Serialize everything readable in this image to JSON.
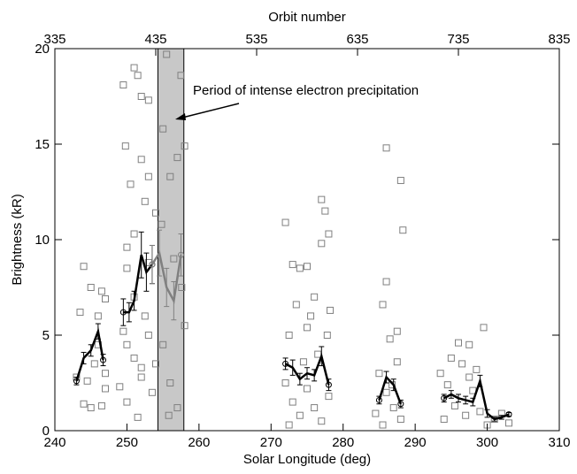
{
  "chart_data": {
    "type": "scatter",
    "x_label": "Solar Longitude (deg)",
    "y_label": "Brightness (kR)",
    "x2_label": "Orbit number",
    "annotation": "Period of intense electron precipitation",
    "xlim": [
      240,
      310
    ],
    "xticks": [
      240,
      250,
      260,
      270,
      280,
      290,
      300,
      310
    ],
    "ylim": [
      0,
      20
    ],
    "yticks": [
      0,
      5,
      10,
      15,
      20
    ],
    "x2lim": [
      335,
      835
    ],
    "x2ticks": [
      335,
      435,
      535,
      635,
      735,
      835
    ],
    "band": {
      "xlim": [
        254.3,
        257.9
      ],
      "color": "#c8c8c8"
    },
    "scatter": {
      "color": "#808080",
      "x": [
        244,
        245,
        246.5,
        247,
        243.5,
        245.5,
        244.5,
        246,
        247,
        244,
        246.5,
        245,
        243,
        246,
        247,
        249.5,
        251,
        251.5,
        252,
        253,
        249.8,
        250.5,
        252,
        253,
        251,
        250,
        252.5,
        254,
        255,
        256,
        257,
        258,
        257.5,
        255.5,
        250,
        251,
        252.5,
        253,
        250,
        251,
        252,
        253.5,
        250,
        251.5,
        254,
        255,
        256,
        257,
        258,
        249,
        253,
        254.8,
        256.5,
        249.5,
        252,
        255.8,
        257.6,
        272,
        273,
        274,
        275,
        277,
        277.5,
        278,
        277,
        276,
        273.5,
        272.5,
        275,
        278.2,
        272,
        273,
        274,
        275,
        276,
        277,
        278,
        272.5,
        274.5,
        276.5,
        275.5,
        277.8,
        286,
        288,
        288.3,
        286,
        285.5,
        287.5,
        286.5,
        285,
        286,
        287,
        288,
        284.5,
        285.5,
        287.5,
        286.8,
        296,
        297.5,
        299.5,
        295,
        296.5,
        298.5,
        294.5,
        295.5,
        297,
        298,
        299,
        300,
        301,
        302,
        303,
        294,
        297.5,
        293.5
      ],
      "y": [
        8.6,
        7.5,
        7.3,
        6.9,
        6.2,
        3.5,
        2.6,
        4.5,
        2.2,
        1.4,
        1.3,
        1.2,
        2.8,
        6.0,
        3.0,
        18.1,
        19.0,
        18.6,
        17.5,
        17.3,
        14.9,
        12.9,
        14.2,
        13.3,
        10.3,
        9.6,
        12.0,
        11.4,
        15.8,
        13.3,
        14.3,
        14.9,
        18.6,
        19.7,
        8.5,
        7.0,
        6.0,
        5.0,
        4.5,
        3.8,
        2.8,
        2.0,
        1.5,
        0.7,
        3.5,
        4.5,
        2.5,
        1.2,
        5.5,
        2.3,
        8.8,
        10.8,
        9.0,
        5.2,
        3.3,
        0.8,
        7.5,
        10.9,
        8.7,
        8.5,
        8.6,
        12.1,
        11.5,
        10.3,
        9.8,
        7.0,
        6.6,
        5.0,
        5.4,
        6.3,
        2.5,
        1.5,
        0.8,
        2.2,
        1.2,
        0.5,
        1.8,
        0.3,
        3.6,
        4.0,
        6.0,
        5.0,
        14.8,
        13.1,
        10.5,
        7.8,
        6.6,
        5.2,
        4.8,
        3.0,
        2.0,
        1.2,
        0.6,
        0.9,
        0.3,
        3.6,
        2.4,
        4.6,
        4.5,
        5.4,
        3.8,
        3.5,
        3.2,
        2.4,
        1.3,
        0.8,
        2.1,
        1.0,
        0.3,
        0.6,
        0.9,
        0.4,
        0.6,
        2.8,
        3.0
      ]
    },
    "series": [
      {
        "color": "#000000",
        "x": [
          243,
          244,
          245,
          246,
          246.7
        ],
        "values": [
          2.6,
          3.8,
          4.2,
          5.2,
          3.7
        ],
        "errors": [
          0.2,
          0.3,
          0.3,
          0.4,
          0.3
        ]
      },
      {
        "color": "#000000",
        "x": [
          249.5,
          250.3,
          251,
          252,
          252.7,
          253.5
        ],
        "values": [
          6.2,
          6.2,
          6.8,
          9.2,
          8.3,
          8.7
        ],
        "errors": [
          0.7,
          0.5,
          0.5,
          1.2,
          1.0,
          1.0
        ]
      },
      {
        "color": "#808080",
        "x": [
          253.5,
          254.5,
          255.5,
          256.5,
          257.5
        ],
        "values": [
          8.7,
          9.3,
          7.5,
          6.8,
          9.2
        ],
        "errors": [
          1.0,
          1.2,
          1.0,
          1.0,
          1.1
        ]
      },
      {
        "color": "#000000",
        "x": [
          272,
          273,
          274,
          275,
          276,
          277,
          278
        ],
        "values": [
          3.5,
          3.3,
          2.7,
          3.0,
          2.9,
          3.9,
          2.4
        ],
        "errors": [
          0.3,
          0.4,
          0.3,
          0.3,
          0.3,
          0.5,
          0.3
        ]
      },
      {
        "color": "#000000",
        "x": [
          285,
          286,
          287,
          288
        ],
        "values": [
          1.6,
          2.8,
          2.4,
          1.4
        ],
        "errors": [
          0.2,
          0.3,
          0.3,
          0.2
        ]
      },
      {
        "color": "#000000",
        "x": [
          294,
          295,
          296,
          297,
          298,
          299,
          300,
          301,
          302,
          303
        ],
        "values": [
          1.7,
          1.9,
          1.7,
          1.6,
          1.5,
          2.6,
          0.9,
          0.6,
          0.7,
          0.85
        ],
        "errors": [
          0.2,
          0.2,
          0.2,
          0.2,
          0.2,
          0.3,
          0.2,
          0.1,
          0.1,
          0.1
        ]
      }
    ]
  }
}
